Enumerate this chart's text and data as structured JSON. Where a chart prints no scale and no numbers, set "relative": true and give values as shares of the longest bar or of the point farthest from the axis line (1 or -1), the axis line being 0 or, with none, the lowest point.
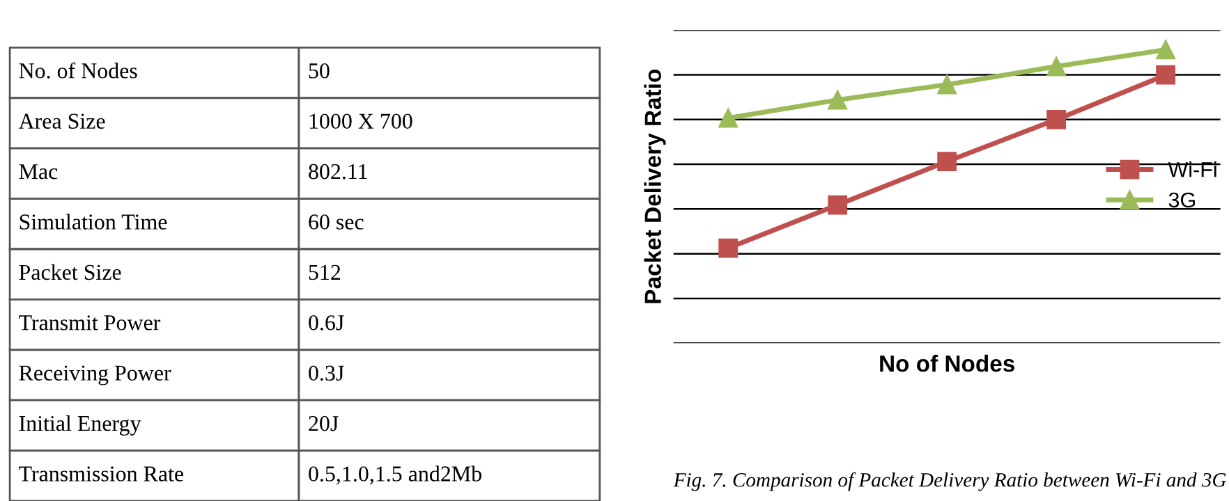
{
  "chart_data": [
    {
      "type": "other",
      "annotations": [
        "No. of Nodes",
        "50",
        "Area Size",
        "1000 X 700",
        "Mac",
        "802.11",
        "Simulation Time",
        "60 sec",
        "Packet Size",
        "512",
        "Transmit Power",
        "0.6J",
        "Receiving Power",
        "0.3J",
        "Initial Energy",
        "20J",
        "Transmission Rate",
        "0.5,1.0,1.5 and2Mb"
      ]
    },
    {
      "type": "line",
      "relative": true,
      "xlabel": "No of Nodes",
      "ylabel": "Packet Delivery Ratio",
      "categories": [
        null,
        null,
        null,
        null,
        null
      ],
      "grid": "y",
      "legend": "right",
      "tick_labels": false,
      "series": [
        {
          "name": "Wi-Fi",
          "color": "#c0504d",
          "marker": "square",
          "values": [
            0.324,
            0.471,
            0.619,
            0.762,
            0.914
          ]
        },
        {
          "name": "3G",
          "color": "#9bbb59",
          "marker": "triangle",
          "values": [
            0.767,
            0.829,
            0.881,
            0.943,
            1
          ]
        }
      ],
      "annotations": [
        "Fig. 7. Comparison of Packet Delivery Ratio between Wi-Fi and 3G"
      ]
    }
  ]
}
